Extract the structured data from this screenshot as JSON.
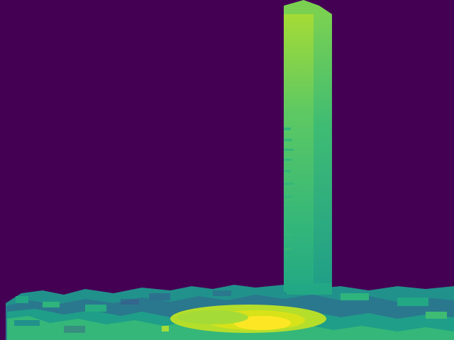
{
  "image": {
    "kind": "false-color depth map",
    "colormap": "viridis",
    "colors": {
      "background": "#440154",
      "far": "#3b528b",
      "mid": "#21918c",
      "near_mid": "#5ec962",
      "near": "#fde725"
    }
  }
}
